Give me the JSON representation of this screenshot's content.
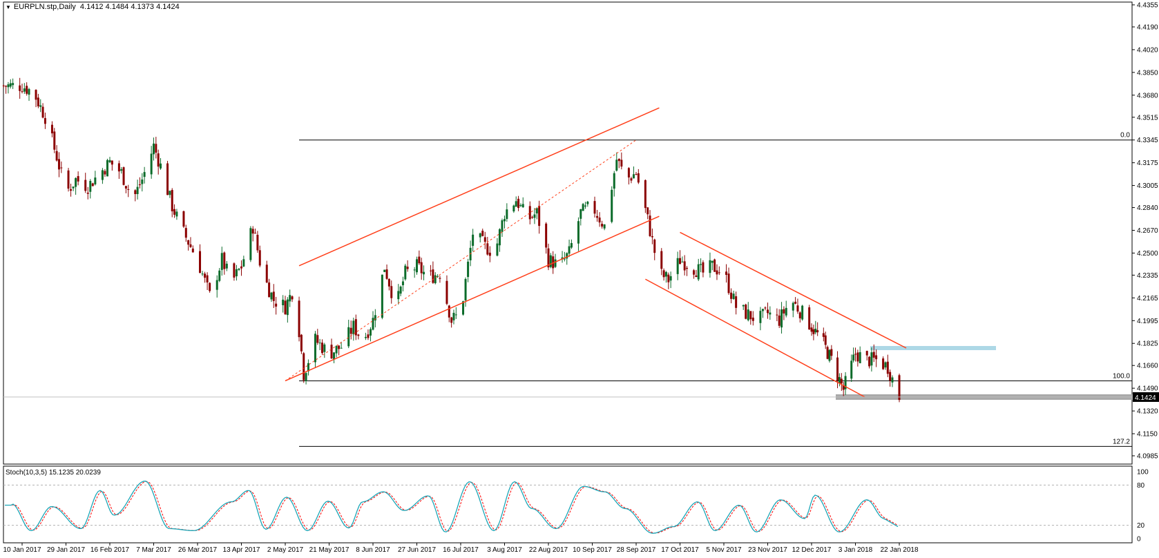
{
  "header": {
    "symbol": "EURPLN.stp,Daily",
    "open": "4.1412",
    "high": "4.1484",
    "low": "4.1373",
    "close": "4.1424"
  },
  "indicator": {
    "label": "Stoch(10,3,5) 15.1235 20.0239",
    "levels": [
      "100",
      "80",
      "20",
      "0"
    ]
  },
  "price_axis": {
    "ticks": [
      "4.4355",
      "4.4190",
      "4.4020",
      "4.3850",
      "4.3680",
      "4.3515",
      "4.3345",
      "4.3175",
      "4.3005",
      "4.2840",
      "4.2670",
      "4.2500",
      "4.2335",
      "4.2165",
      "4.1995",
      "4.1825",
      "4.1660",
      "4.1490",
      "4.1320",
      "4.1150",
      "4.0985"
    ],
    "current_price": "4.1424"
  },
  "time_axis": {
    "labels": [
      "10 Jan 2017",
      "29 Jan 2017",
      "16 Feb 2017",
      "7 Mar 2017",
      "26 Mar 2017",
      "13 Apr 2017",
      "2 May 2017",
      "21 May 2017",
      "8 Jun 2017",
      "27 Jun 2017",
      "16 Jul 2017",
      "3 Aug 2017",
      "22 Aug 2017",
      "10 Sep 2017",
      "28 Sep 2017",
      "17 Oct 2017",
      "5 Nov 2017",
      "23 Nov 2017",
      "12 Dec 2017",
      "3 Jan 2018",
      "22 Jan 2018"
    ]
  },
  "fibonacci": [
    {
      "label": "0.0",
      "price": 4.3345
    },
    {
      "label": "100.0",
      "price": 4.1545
    },
    {
      "label": "127.2",
      "price": 4.1055
    }
  ],
  "colors": {
    "trendline": "#ff3f1a",
    "bull_candle": "#0b6b2a",
    "bear_candle": "#8b0000",
    "stoch_main": "#1aa6b7",
    "stoch_signal": "#ff0000",
    "resistance_zone": "#add8e6",
    "support_zone": "#a9a9a9"
  },
  "chart_data": {
    "type": "candlestick",
    "title": "EURPLN.stp,Daily",
    "ylim": [
      4.0985,
      4.4355
    ],
    "grid": false,
    "close_path": [
      [
        "10 Jan 2017",
        4.375
      ],
      [
        "15 Jan 2017",
        4.37
      ],
      [
        "20 Jan 2017",
        4.352
      ],
      [
        "25 Jan 2017",
        4.322
      ],
      [
        "29 Jan 2017",
        4.295
      ],
      [
        "2 Feb 2017",
        4.305
      ],
      [
        "7 Feb 2017",
        4.3
      ],
      [
        "12 Feb 2017",
        4.31
      ],
      [
        "16 Feb 2017",
        4.318
      ],
      [
        "21 Feb 2017",
        4.31
      ],
      [
        "26 Feb 2017",
        4.29
      ],
      [
        "2 Mar 2017",
        4.305
      ],
      [
        "7 Mar 2017",
        4.33
      ],
      [
        "10 Mar 2017",
        4.315
      ],
      [
        "15 Mar 2017",
        4.285
      ],
      [
        "20 Mar 2017",
        4.265
      ],
      [
        "26 Mar 2017",
        4.245
      ],
      [
        "31 Mar 2017",
        4.218
      ],
      [
        "5 Apr 2017",
        4.245
      ],
      [
        "9 Apr 2017",
        4.228
      ],
      [
        "13 Apr 2017",
        4.24
      ],
      [
        "18 Apr 2017",
        4.27
      ],
      [
        "22 Apr 2017",
        4.235
      ],
      [
        "27 Apr 2017",
        4.215
      ],
      [
        "2 May 2017",
        4.21
      ],
      [
        "6 May 2017",
        4.225
      ],
      [
        "10 May 2017",
        4.16
      ],
      [
        "15 May 2017",
        4.185
      ],
      [
        "21 May 2017",
        4.175
      ],
      [
        "26 May 2017",
        4.18
      ],
      [
        "31 May 2017",
        4.195
      ],
      [
        "4 Jun 2017",
        4.185
      ],
      [
        "8 Jun 2017",
        4.2
      ],
      [
        "13 Jun 2017",
        4.24
      ],
      [
        "18 Jun 2017",
        4.21
      ],
      [
        "22 Jun 2017",
        4.235
      ],
      [
        "27 Jun 2017",
        4.24
      ],
      [
        "2 Jul 2017",
        4.232
      ],
      [
        "7 Jul 2017",
        4.235
      ],
      [
        "12 Jul 2017",
        4.2
      ],
      [
        "16 Jul 2017",
        4.205
      ],
      [
        "21 Jul 2017",
        4.265
      ],
      [
        "26 Jul 2017",
        4.255
      ],
      [
        "30 Jul 2017",
        4.25
      ],
      [
        "3 Aug 2017",
        4.28
      ],
      [
        "8 Aug 2017",
        4.29
      ],
      [
        "13 Aug 2017",
        4.275
      ],
      [
        "17 Aug 2017",
        4.28
      ],
      [
        "22 Aug 2017",
        4.245
      ],
      [
        "27 Aug 2017",
        4.24
      ],
      [
        "31 Aug 2017",
        4.25
      ],
      [
        "5 Sep 2017",
        4.28
      ],
      [
        "10 Sep 2017",
        4.285
      ],
      [
        "15 Sep 2017",
        4.27
      ],
      [
        "20 Sep 2017",
        4.32
      ],
      [
        "24 Sep 2017",
        4.305
      ],
      [
        "28 Sep 2017",
        4.31
      ],
      [
        "3 Oct 2017",
        4.275
      ],
      [
        "8 Oct 2017",
        4.235
      ],
      [
        "12 Oct 2017",
        4.23
      ],
      [
        "17 Oct 2017",
        4.245
      ],
      [
        "22 Oct 2017",
        4.24
      ],
      [
        "27 Oct 2017",
        4.235
      ],
      [
        "31 Oct 2017",
        4.24
      ],
      [
        "5 Nov 2017",
        4.235
      ],
      [
        "10 Nov 2017",
        4.21
      ],
      [
        "14 Nov 2017",
        4.205
      ],
      [
        "19 Nov 2017",
        4.2
      ],
      [
        "23 Nov 2017",
        4.205
      ],
      [
        "28 Nov 2017",
        4.2
      ],
      [
        "3 Dec 2017",
        4.215
      ],
      [
        "8 Dec 2017",
        4.205
      ],
      [
        "12 Dec 2017",
        4.195
      ],
      [
        "17 Dec 2017",
        4.185
      ],
      [
        "22 Dec 2017",
        4.17
      ],
      [
        "28 Dec 2017",
        4.148
      ],
      [
        "3 Jan 2018",
        4.175
      ],
      [
        "8 Jan 2018",
        4.17
      ],
      [
        "12 Jan 2018",
        4.17
      ],
      [
        "17 Jan 2018",
        4.165
      ],
      [
        "22 Jan 2018",
        4.1424
      ]
    ]
  }
}
